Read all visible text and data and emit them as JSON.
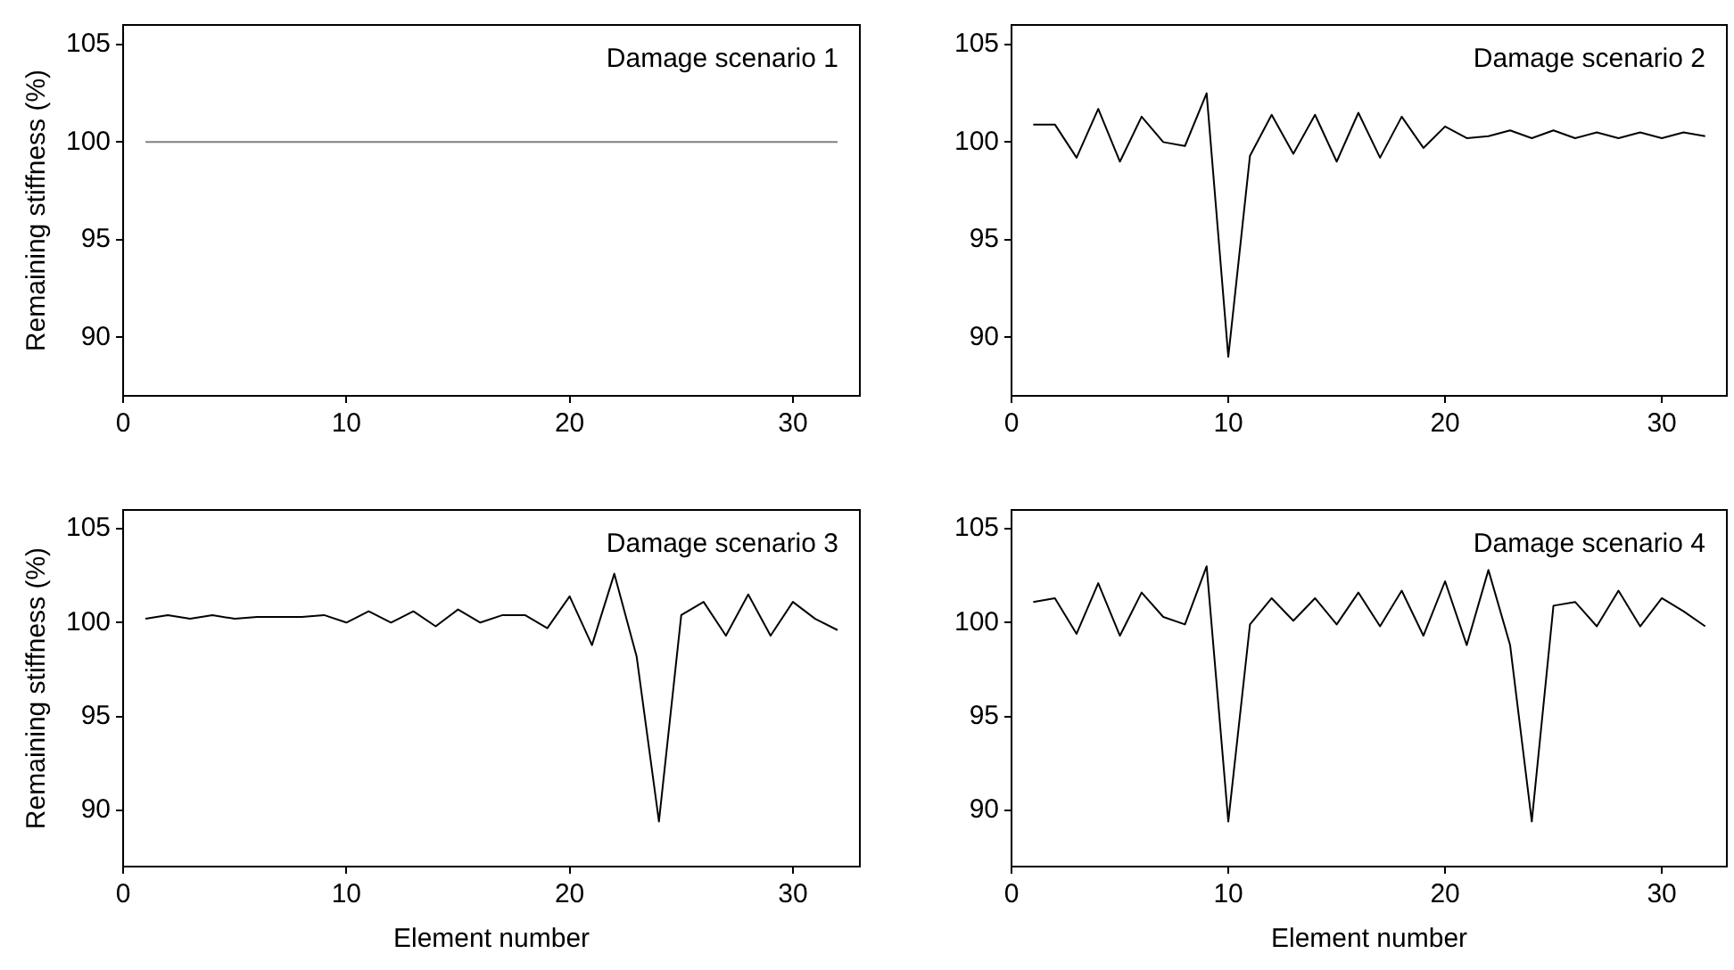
{
  "chart_data": [
    {
      "type": "line",
      "x": [
        1,
        2,
        3,
        4,
        5,
        6,
        7,
        8,
        9,
        10,
        11,
        12,
        13,
        14,
        15,
        16,
        17,
        18,
        19,
        20,
        21,
        22,
        23,
        24,
        25,
        26,
        27,
        28,
        29,
        30,
        31,
        32
      ],
      "ylabel": "Remaining stiffness (%)",
      "annotations": [
        "Damage scenario 1"
      ],
      "xlim": [
        0,
        33
      ],
      "xticks": [
        0,
        10,
        20,
        30
      ],
      "ylim": [
        87,
        106
      ],
      "yticks": [
        90,
        95,
        100,
        105
      ],
      "grid": false,
      "legend": false,
      "series": [
        {
          "color": "#808080",
          "values": [
            100,
            100,
            100,
            100,
            100,
            100,
            100,
            100,
            100,
            100,
            100,
            100,
            100,
            100,
            100,
            100,
            100,
            100,
            100,
            100,
            100,
            100,
            100,
            100,
            100,
            100,
            100,
            100,
            100,
            100,
            100,
            100
          ]
        }
      ]
    },
    {
      "type": "line",
      "x": [
        1,
        2,
        3,
        4,
        5,
        6,
        7,
        8,
        9,
        10,
        11,
        12,
        13,
        14,
        15,
        16,
        17,
        18,
        19,
        20,
        21,
        22,
        23,
        24,
        25,
        26,
        27,
        28,
        29,
        30,
        31,
        32
      ],
      "annotations": [
        "Damage scenario 2"
      ],
      "xlim": [
        0,
        33
      ],
      "xticks": [
        0,
        10,
        20,
        30
      ],
      "ylim": [
        87,
        106
      ],
      "yticks": [
        90,
        95,
        100,
        105
      ],
      "grid": false,
      "legend": false,
      "series": [
        {
          "color": "#000000",
          "values": [
            100.9,
            100.9,
            99.2,
            101.7,
            99.0,
            101.3,
            100.0,
            99.8,
            102.5,
            89.0,
            99.3,
            101.4,
            99.4,
            101.4,
            99.0,
            101.5,
            99.2,
            101.3,
            99.7,
            100.8,
            100.2,
            100.3,
            100.6,
            100.2,
            100.6,
            100.2,
            100.5,
            100.2,
            100.5,
            100.2,
            100.5,
            100.3
          ]
        }
      ]
    },
    {
      "type": "line",
      "x": [
        1,
        2,
        3,
        4,
        5,
        6,
        7,
        8,
        9,
        10,
        11,
        12,
        13,
        14,
        15,
        16,
        17,
        18,
        19,
        20,
        21,
        22,
        23,
        24,
        25,
        26,
        27,
        28,
        29,
        30,
        31,
        32
      ],
      "xlabel": "Element number",
      "ylabel": "Remaining stiffness (%)",
      "annotations": [
        "Damage scenario 3"
      ],
      "xlim": [
        0,
        33
      ],
      "xticks": [
        0,
        10,
        20,
        30
      ],
      "ylim": [
        87,
        106
      ],
      "yticks": [
        90,
        95,
        100,
        105
      ],
      "grid": false,
      "legend": false,
      "series": [
        {
          "color": "#000000",
          "values": [
            100.2,
            100.4,
            100.2,
            100.4,
            100.2,
            100.3,
            100.3,
            100.3,
            100.4,
            100.0,
            100.6,
            100.0,
            100.6,
            99.8,
            100.7,
            100.0,
            100.4,
            100.4,
            99.7,
            101.4,
            98.8,
            102.6,
            98.2,
            89.4,
            100.4,
            101.1,
            99.3,
            101.5,
            99.3,
            101.1,
            100.2,
            99.6
          ]
        }
      ]
    },
    {
      "type": "line",
      "x": [
        1,
        2,
        3,
        4,
        5,
        6,
        7,
        8,
        9,
        10,
        11,
        12,
        13,
        14,
        15,
        16,
        17,
        18,
        19,
        20,
        21,
        22,
        23,
        24,
        25,
        26,
        27,
        28,
        29,
        30,
        31,
        32
      ],
      "xlabel": "Element number",
      "annotations": [
        "Damage scenario 4"
      ],
      "xlim": [
        0,
        33
      ],
      "xticks": [
        0,
        10,
        20,
        30
      ],
      "ylim": [
        87,
        106
      ],
      "yticks": [
        90,
        95,
        100,
        105
      ],
      "grid": false,
      "legend": false,
      "series": [
        {
          "color": "#000000",
          "values": [
            101.1,
            101.3,
            99.4,
            102.1,
            99.3,
            101.6,
            100.3,
            99.9,
            103.0,
            89.4,
            99.9,
            101.3,
            100.1,
            101.3,
            99.9,
            101.6,
            99.8,
            101.7,
            99.3,
            102.2,
            98.8,
            102.8,
            98.8,
            89.4,
            100.9,
            101.1,
            99.8,
            101.7,
            99.8,
            101.3,
            100.6,
            99.8
          ]
        }
      ]
    }
  ]
}
